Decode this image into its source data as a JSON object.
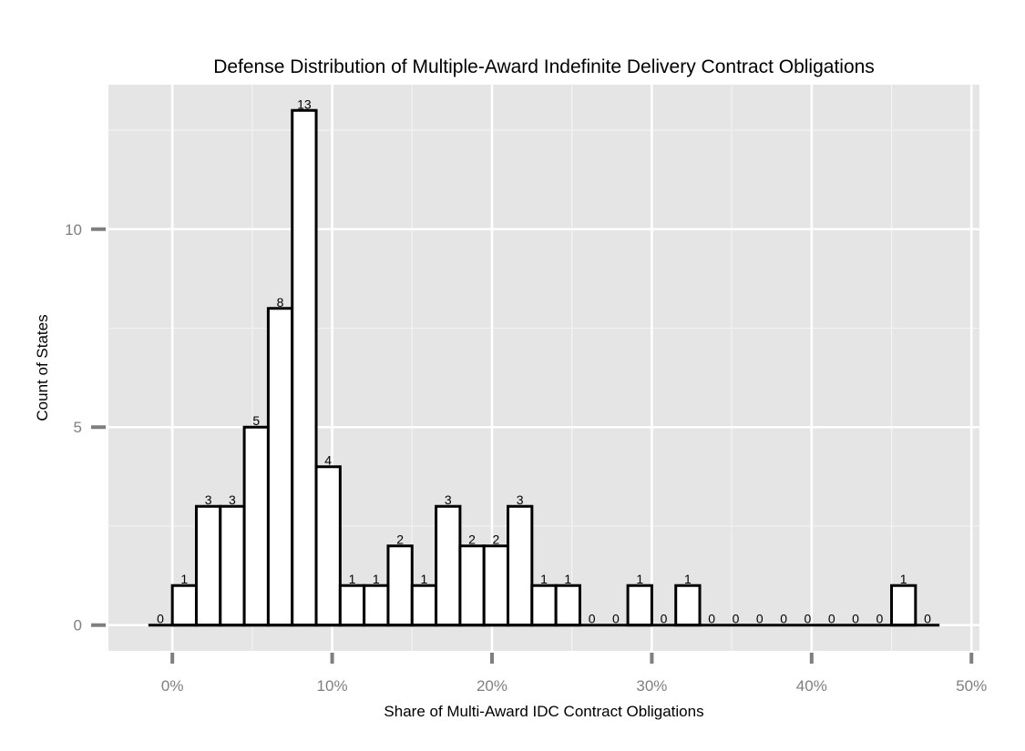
{
  "chart_data": {
    "type": "bar",
    "title": "Defense Distribution of Multiple-Award Indefinite Delivery Contract Obligations",
    "xlabel": "Share of Multi-Award IDC Contract Obligations",
    "ylabel": "Count of States",
    "x_start_pct": -1.5,
    "bin_width_pct": 1.5,
    "values": [
      0,
      1,
      3,
      3,
      5,
      8,
      13,
      4,
      1,
      1,
      2,
      1,
      3,
      2,
      2,
      3,
      1,
      1,
      0,
      0,
      1,
      0,
      1,
      0,
      0,
      0,
      0,
      0,
      0,
      0,
      0,
      1,
      0
    ],
    "xlim": [
      -4,
      50.5
    ],
    "ylim": [
      -0.65,
      13.65
    ],
    "x_ticks": [
      {
        "value": 0,
        "label": "0%"
      },
      {
        "value": 10,
        "label": "10%"
      },
      {
        "value": 20,
        "label": "20%"
      },
      {
        "value": 30,
        "label": "30%"
      },
      {
        "value": 40,
        "label": "40%"
      },
      {
        "value": 50,
        "label": "50%"
      }
    ],
    "y_ticks": [
      {
        "value": 0,
        "label": "0"
      },
      {
        "value": 5,
        "label": "5"
      },
      {
        "value": 10,
        "label": "10"
      }
    ],
    "grid": true,
    "colors": {
      "panel": "#e5e5e5",
      "grid_major": "#ffffff",
      "grid_minor": "#f2f2f2",
      "bar_fill": "#ffffff",
      "bar_stroke": "#000000",
      "tick": "#7f7f7f"
    }
  }
}
